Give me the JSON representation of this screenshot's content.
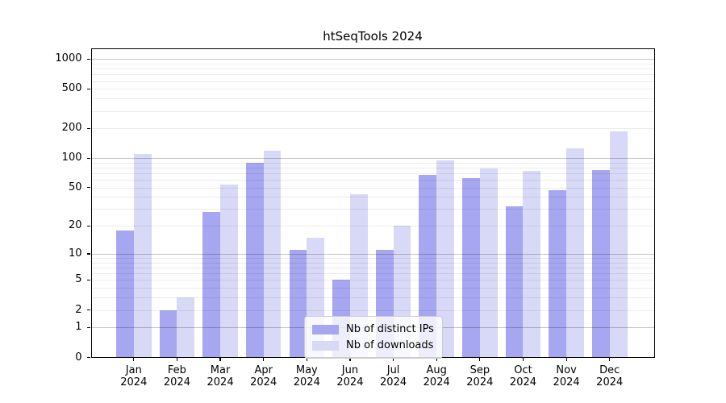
{
  "chart_data": {
    "type": "bar",
    "title": "htSeqTools 2024",
    "categories": [
      "Jan",
      "Feb",
      "Mar",
      "Apr",
      "May",
      "Jun",
      "Jul",
      "Aug",
      "Sep",
      "Oct",
      "Nov",
      "Dec"
    ],
    "x_year_label": "2024",
    "series": [
      {
        "name": "Nb of distinct IPs",
        "color": "#a6a6f1",
        "values": [
          18,
          2,
          28,
          90,
          11,
          5,
          11,
          68,
          63,
          32,
          47,
          76
        ]
      },
      {
        "name": "Nb of downloads",
        "color": "#d8d8f7",
        "values": [
          110,
          3,
          54,
          119,
          15,
          43,
          20,
          95,
          78,
          74,
          125,
          185
        ]
      }
    ],
    "y_scale": "log10(1+x)",
    "y_ticks": [
      0,
      1,
      2,
      5,
      10,
      20,
      50,
      100,
      200,
      500,
      1000
    ],
    "grid_major_at": [
      1,
      10,
      100,
      1000
    ],
    "grid_minor_rule": "2-9 per decade",
    "ylim_top": 1250,
    "legend_position": "inside-bottom-center",
    "axis_color": "#000000",
    "grid_major_color": "rgba(0,0,0,0.23)",
    "grid_minor_color": "rgba(0,0,0,0.075)",
    "background_color": "#ffffff"
  }
}
